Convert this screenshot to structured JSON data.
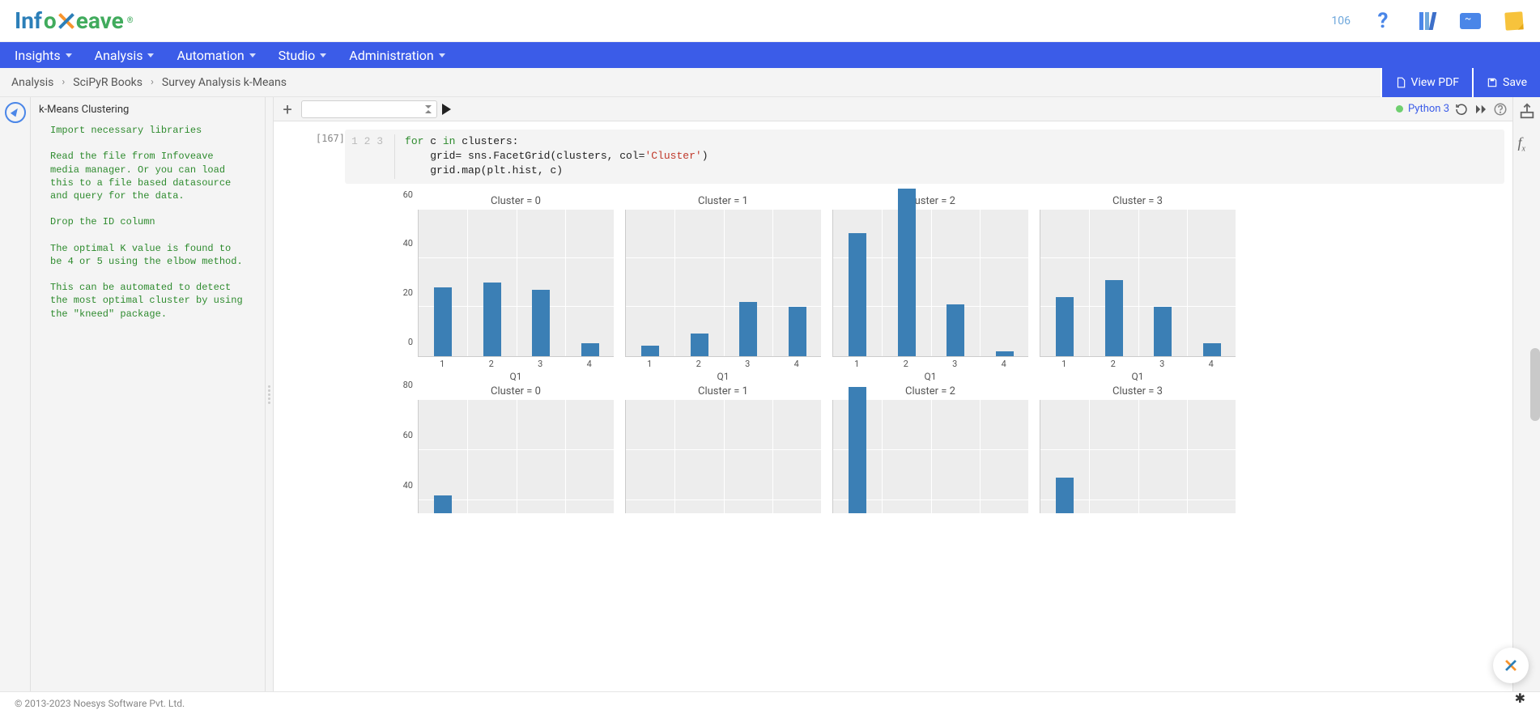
{
  "logo": {
    "part1": "Inf",
    "part2": "o",
    "part3": "eave",
    "tm": "®"
  },
  "notif": {
    "count": "106"
  },
  "nav": [
    "Insights",
    "Analysis",
    "Automation",
    "Studio",
    "Administration"
  ],
  "crumbs": [
    "Analysis",
    "SciPyR Books",
    "Survey Analysis k-Means"
  ],
  "buttons": {
    "viewpdf": "View PDF",
    "save": "Save"
  },
  "outline": {
    "title": "k-Means Clustering",
    "body": "Import necessary libraries\n\nRead the file from Infoveave\nmedia manager. Or you can load\nthis to a file based datasource\nand query for the data.\n\nDrop the ID column\n\nThe optimal K value is found to\nbe 4 or 5 using the elbow method.\n\nThis can be automated to detect\nthe most optimal cluster by using\nthe \"kneed\" package."
  },
  "kernel": {
    "label": "Python 3"
  },
  "cell": {
    "prompt": "[167]",
    "lines": [
      "1",
      "2",
      "3"
    ],
    "code_tokens": [
      [
        {
          "t": "for ",
          "c": "kw"
        },
        {
          "t": "c ",
          "c": "pn"
        },
        {
          "t": "in ",
          "c": "kw"
        },
        {
          "t": "clusters:",
          "c": "pn"
        }
      ],
      [
        {
          "t": "    grid= sns.FacetGrid(clusters, col=",
          "c": "pn"
        },
        {
          "t": "'Cluster'",
          "c": "str"
        },
        {
          "t": ")",
          "c": "pn"
        }
      ],
      [
        {
          "t": "    grid.map(plt.hist, c)",
          "c": "pn"
        }
      ]
    ]
  },
  "chart": {
    "bar_color": "#3B7FB5",
    "facet_bg": "#EDEDED",
    "row1": {
      "ymax": 60,
      "yticks": [
        0,
        20,
        40,
        60
      ],
      "xticks": [
        "1",
        "2",
        "3",
        "4"
      ],
      "xlabel": "Q1",
      "titles": [
        "Cluster = 0",
        "Cluster = 1",
        "Cluster = 2",
        "Cluster = 3"
      ],
      "panels": [
        [
          28,
          30,
          27,
          5
        ],
        [
          4,
          9,
          22,
          20
        ],
        [
          50,
          68,
          21,
          2
        ],
        [
          24,
          31,
          20,
          5
        ]
      ]
    },
    "row2": {
      "ymax": 80,
      "yticks": [
        40,
        60,
        80
      ],
      "ybottom": 35,
      "titles": [
        "Cluster = 0",
        "Cluster = 1",
        "Cluster = 2",
        "Cluster = 3"
      ],
      "panels": [
        [
          42,
          0,
          0,
          0
        ],
        [
          0,
          0,
          0,
          0
        ],
        [
          85,
          0,
          0,
          0
        ],
        [
          49,
          0,
          0,
          0
        ]
      ],
      "cut": true
    }
  },
  "footer": "© 2013-2023 Noesys Software Pvt. Ltd."
}
